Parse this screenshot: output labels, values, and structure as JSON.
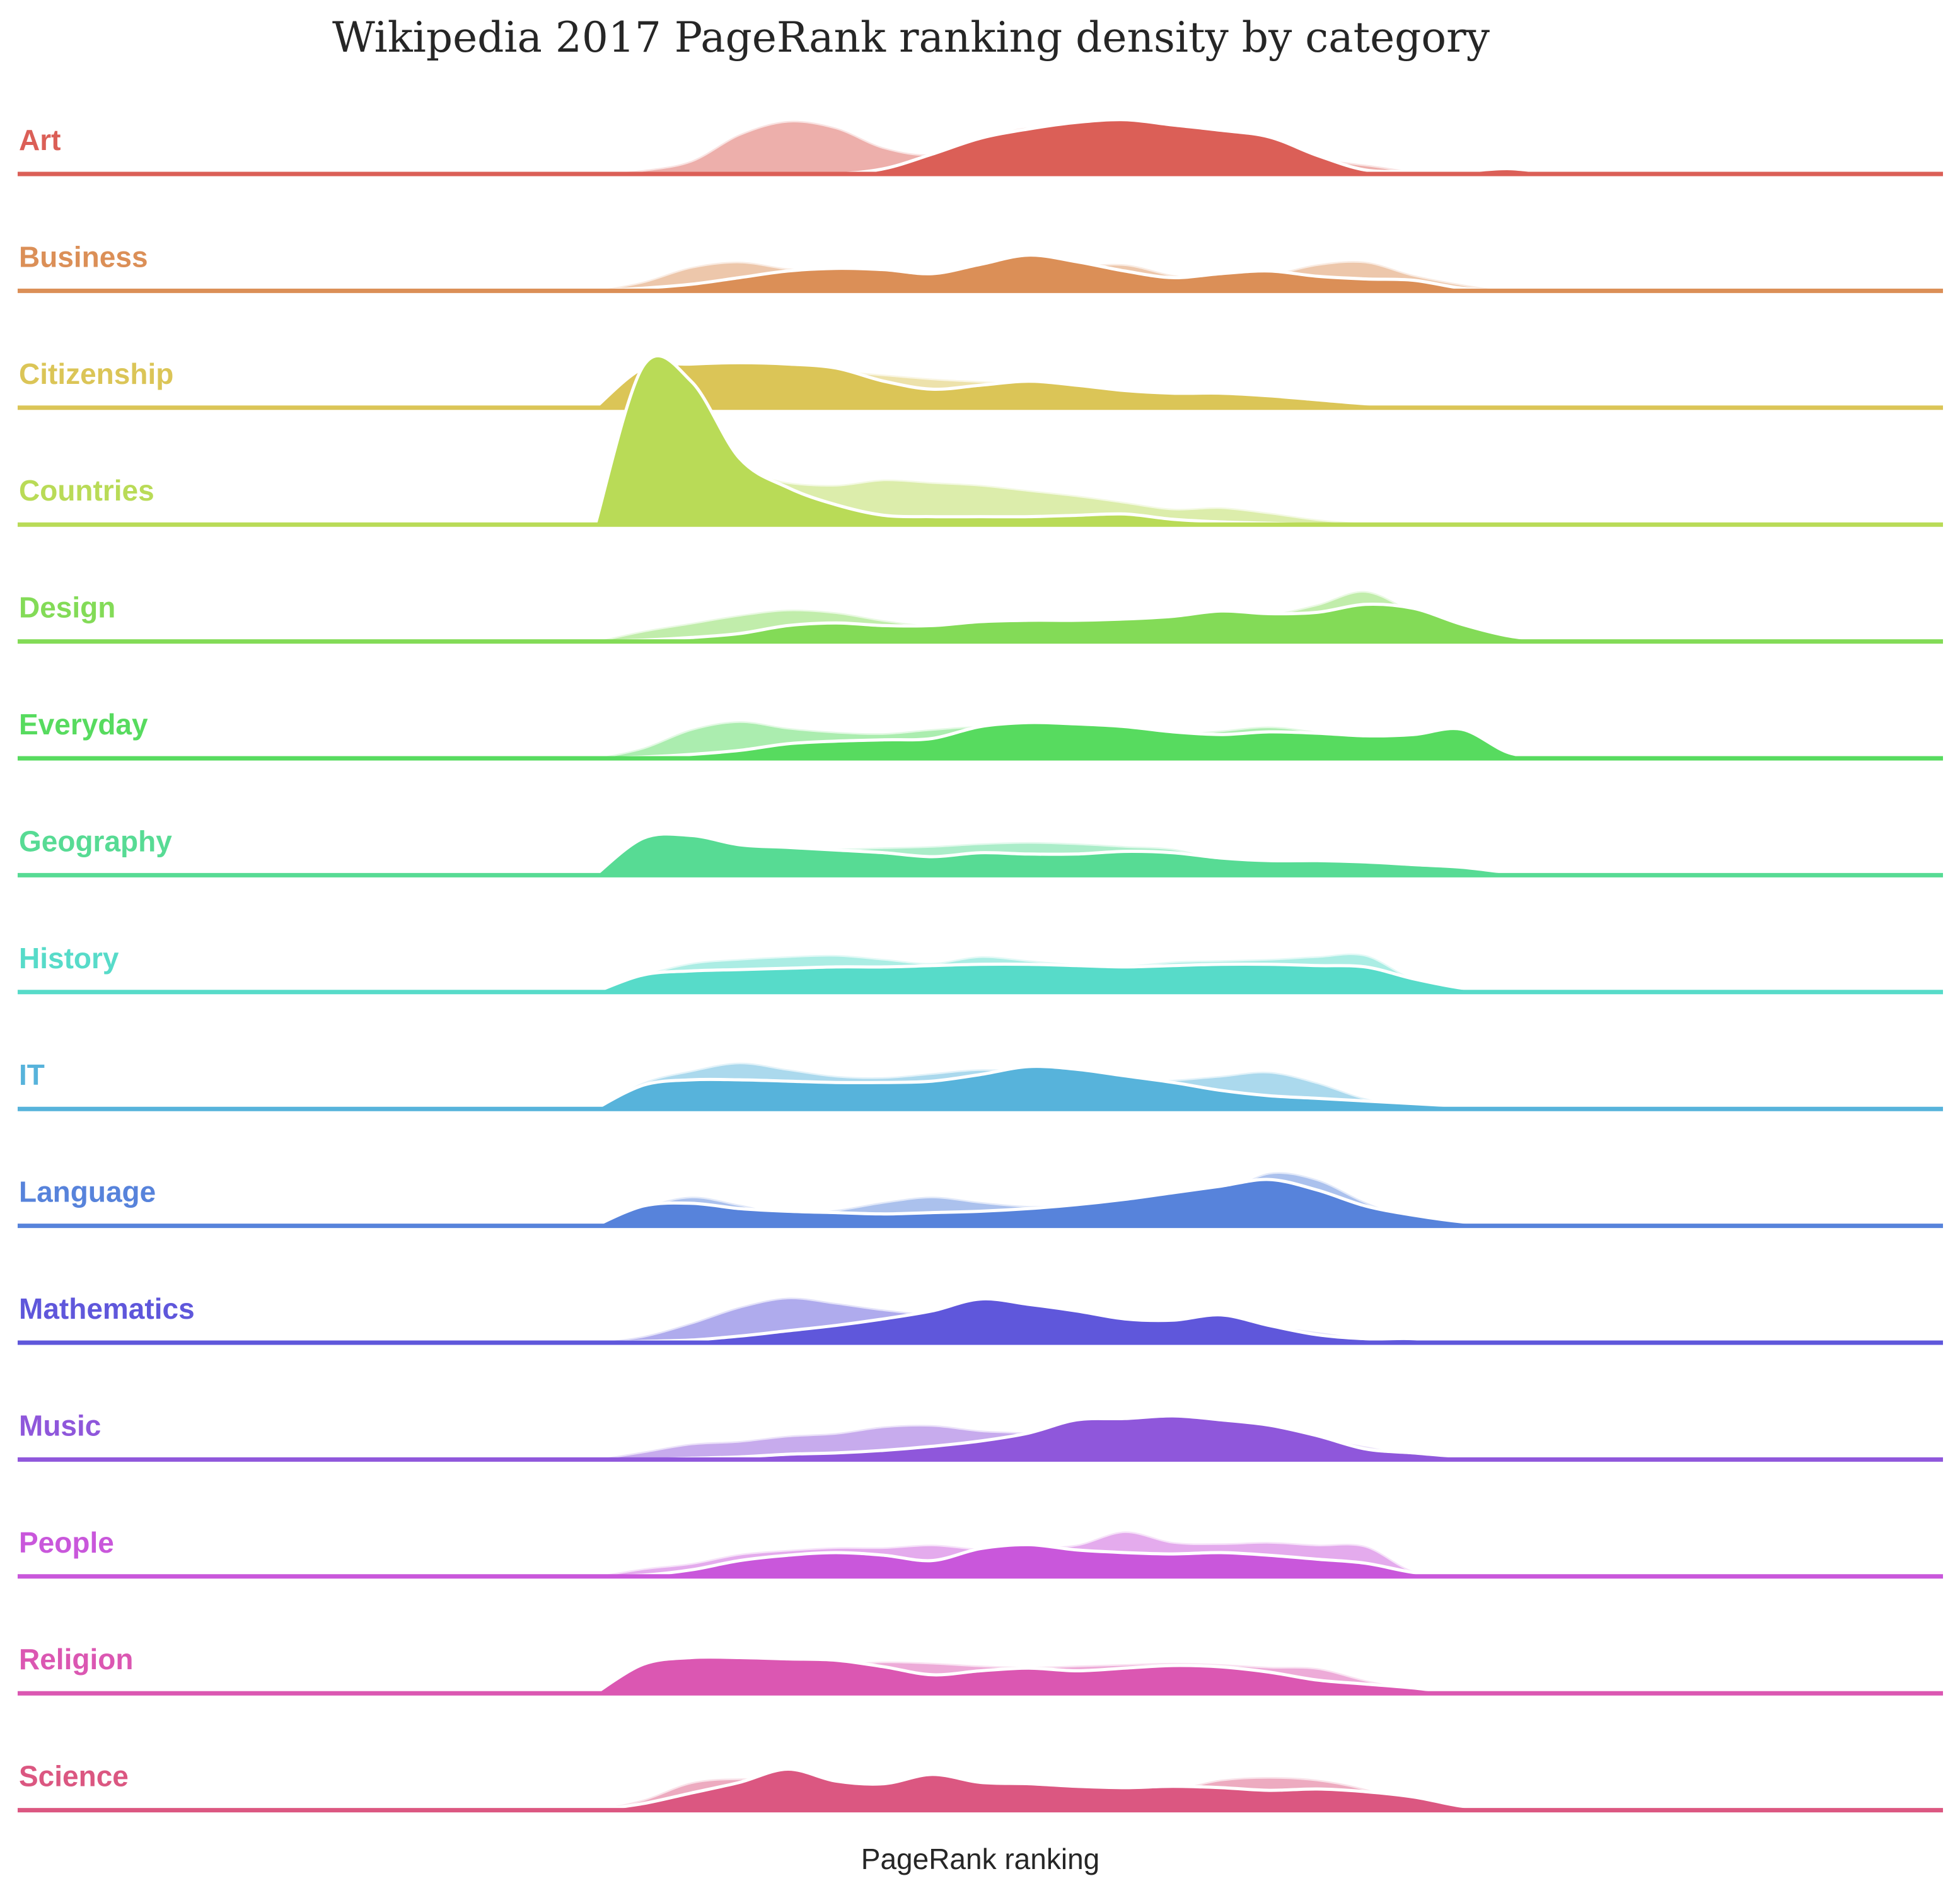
{
  "chart_data": {
    "type": "area",
    "title": "Wikipedia 2017 PageRank ranking density by category",
    "xlabel": "PageRank ranking",
    "ylabel": "",
    "grid": false,
    "legend": "none",
    "x": [
      0,
      5,
      10,
      15,
      20,
      25,
      30,
      35,
      40,
      45,
      50,
      55,
      60,
      65,
      70,
      75,
      80,
      85,
      90,
      95,
      100
    ],
    "xlim": [
      -60,
      140
    ],
    "ylim": [
      0,
      1
    ],
    "series": [
      {
        "name": "Art",
        "color": "#db5f57",
        "dark": [
          0,
          0,
          0,
          0,
          0,
          0,
          0.04,
          0.15,
          0.27,
          0.34,
          0.39,
          0.41,
          0.37,
          0.33,
          0.28,
          0.14,
          0.03,
          0.02,
          0.02,
          0.04,
          0
        ],
        "light": [
          0,
          0.03,
          0.1,
          0.3,
          0.4,
          0.35,
          0.2,
          0.15,
          0.25,
          0.35,
          0.25,
          0.15,
          0.06,
          0.02,
          0.03,
          0.1,
          0.07,
          0.02,
          0,
          0,
          0
        ]
      },
      {
        "name": "Business",
        "color": "#db8f57",
        "dark": [
          0,
          0.02,
          0.05,
          0.1,
          0.15,
          0.17,
          0.16,
          0.13,
          0.2,
          0.27,
          0.22,
          0.15,
          0.1,
          0.13,
          0.15,
          0.11,
          0.09,
          0.08,
          0.02,
          0,
          0
        ],
        "light": [
          0,
          0.07,
          0.18,
          0.22,
          0.17,
          0.15,
          0.14,
          0.12,
          0.08,
          0.1,
          0.18,
          0.2,
          0.12,
          0.08,
          0.12,
          0.2,
          0.22,
          0.12,
          0.05,
          0,
          0
        ]
      },
      {
        "name": "Citizenship",
        "color": "#dbc557",
        "dark": [
          0,
          0.3,
          0.33,
          0.34,
          0.33,
          0.3,
          0.2,
          0.14,
          0.17,
          0.2,
          0.17,
          0.13,
          0.11,
          0.11,
          0.09,
          0.06,
          0.03,
          0.01,
          0,
          0,
          0
        ],
        "light": [
          0,
          0.28,
          0.32,
          0.32,
          0.3,
          0.28,
          0.25,
          0.22,
          0.2,
          0.18,
          0.15,
          0.13,
          0.12,
          0.11,
          0.09,
          0.06,
          0.03,
          0.01,
          0,
          0,
          0
        ]
      },
      {
        "name": "Countries",
        "color": "#b9db57",
        "dark": [
          0,
          1.2,
          1.08,
          0.5,
          0.28,
          0.15,
          0.07,
          0.06,
          0.06,
          0.06,
          0.07,
          0.08,
          0.04,
          0.02,
          0.01,
          0,
          0,
          0,
          0,
          0,
          0
        ],
        "light": [
          0,
          0.35,
          0.38,
          0.4,
          0.32,
          0.3,
          0.34,
          0.32,
          0.3,
          0.26,
          0.22,
          0.17,
          0.12,
          0.13,
          0.09,
          0.04,
          0.01,
          0,
          0,
          0,
          0
        ]
      },
      {
        "name": "Design",
        "color": "#83db57",
        "dark": [
          0,
          0.01,
          0.03,
          0.06,
          0.12,
          0.14,
          0.12,
          0.12,
          0.15,
          0.16,
          0.16,
          0.17,
          0.19,
          0.23,
          0.21,
          0.22,
          0.28,
          0.25,
          0.13,
          0.04,
          0
        ],
        "light": [
          0,
          0.08,
          0.14,
          0.2,
          0.24,
          0.22,
          0.16,
          0.12,
          0.12,
          0.14,
          0.16,
          0.18,
          0.16,
          0.16,
          0.2,
          0.28,
          0.38,
          0.22,
          0.04,
          0,
          0
        ]
      },
      {
        "name": "Everyday",
        "color": "#57db5f",
        "dark": [
          0,
          0.01,
          0.03,
          0.06,
          0.11,
          0.13,
          0.14,
          0.15,
          0.24,
          0.27,
          0.26,
          0.24,
          0.2,
          0.18,
          0.2,
          0.19,
          0.17,
          0.18,
          0.22,
          0.04,
          0
        ],
        "light": [
          0,
          0.08,
          0.22,
          0.28,
          0.23,
          0.2,
          0.19,
          0.22,
          0.24,
          0.2,
          0.16,
          0.16,
          0.18,
          0.21,
          0.24,
          0.2,
          0.14,
          0.04,
          0.01,
          0,
          0
        ]
      },
      {
        "name": "Geography",
        "color": "#57db94",
        "dark": [
          0,
          0.28,
          0.3,
          0.23,
          0.21,
          0.19,
          0.17,
          0.14,
          0.17,
          0.16,
          0.16,
          0.18,
          0.17,
          0.13,
          0.11,
          0.11,
          0.1,
          0.08,
          0.06,
          0.02,
          0
        ],
        "light": [
          0,
          0.2,
          0.24,
          0.22,
          0.2,
          0.2,
          0.21,
          0.22,
          0.24,
          0.25,
          0.24,
          0.22,
          0.2,
          0.12,
          0.1,
          0.08,
          0.05,
          0.02,
          0,
          0,
          0
        ]
      },
      {
        "name": "History",
        "color": "#57dbc9",
        "dark": [
          0,
          0.13,
          0.16,
          0.17,
          0.18,
          0.19,
          0.19,
          0.2,
          0.21,
          0.21,
          0.2,
          0.19,
          0.2,
          0.21,
          0.21,
          0.2,
          0.19,
          0.1,
          0.03,
          0,
          0
        ],
        "light": [
          0,
          0.13,
          0.22,
          0.25,
          0.27,
          0.28,
          0.25,
          0.22,
          0.27,
          0.24,
          0.21,
          0.2,
          0.23,
          0.24,
          0.25,
          0.27,
          0.28,
          0.1,
          0.02,
          0,
          0
        ]
      },
      {
        "name": "IT",
        "color": "#57b3db",
        "dark": [
          0,
          0.18,
          0.22,
          0.22,
          0.21,
          0.2,
          0.2,
          0.21,
          0.26,
          0.32,
          0.3,
          0.25,
          0.2,
          0.14,
          0.1,
          0.08,
          0.06,
          0.04,
          0.02,
          0,
          0
        ],
        "light": [
          0,
          0.2,
          0.29,
          0.35,
          0.3,
          0.25,
          0.24,
          0.27,
          0.3,
          0.28,
          0.22,
          0.2,
          0.22,
          0.25,
          0.28,
          0.2,
          0.08,
          0.02,
          0,
          0,
          0
        ]
      },
      {
        "name": "Language",
        "color": "#5783db",
        "dark": [
          0,
          0.15,
          0.17,
          0.13,
          0.11,
          0.1,
          0.09,
          0.1,
          0.11,
          0.13,
          0.16,
          0.2,
          0.25,
          0.3,
          0.35,
          0.27,
          0.15,
          0.08,
          0.03,
          0,
          0
        ],
        "light": [
          0,
          0.14,
          0.22,
          0.16,
          0.09,
          0.12,
          0.18,
          0.22,
          0.18,
          0.15,
          0.16,
          0.16,
          0.18,
          0.24,
          0.4,
          0.35,
          0.18,
          0.05,
          0.01,
          0,
          0
        ]
      },
      {
        "name": "Mathematics",
        "color": "#5f57db",
        "dark": [
          0,
          0.01,
          0.02,
          0.05,
          0.09,
          0.13,
          0.18,
          0.24,
          0.33,
          0.29,
          0.24,
          0.18,
          0.17,
          0.21,
          0.13,
          0.06,
          0.03,
          0.03,
          0,
          0,
          0
        ],
        "light": [
          0,
          0.05,
          0.15,
          0.27,
          0.34,
          0.3,
          0.25,
          0.22,
          0.26,
          0.21,
          0.17,
          0.15,
          0.12,
          0.11,
          0.12,
          0.08,
          0.03,
          0.01,
          0,
          0,
          0
        ]
      },
      {
        "name": "Music",
        "color": "#8f57db",
        "dark": [
          0,
          0,
          0.01,
          0.02,
          0.04,
          0.05,
          0.07,
          0.1,
          0.14,
          0.2,
          0.3,
          0.31,
          0.33,
          0.3,
          0.26,
          0.18,
          0.08,
          0.05,
          0.02,
          0,
          0
        ],
        "light": [
          0,
          0.06,
          0.12,
          0.14,
          0.18,
          0.2,
          0.25,
          0.26,
          0.22,
          0.2,
          0.14,
          0.14,
          0.19,
          0.27,
          0.2,
          0.16,
          0.1,
          0.03,
          0.01,
          0,
          0
        ]
      },
      {
        "name": "People",
        "color": "#c957db",
        "dark": [
          0,
          0.01,
          0.05,
          0.12,
          0.16,
          0.18,
          0.16,
          0.12,
          0.21,
          0.24,
          0.2,
          0.18,
          0.17,
          0.18,
          0.16,
          0.13,
          0.1,
          0.03,
          0,
          0,
          0
        ],
        "light": [
          0,
          0.06,
          0.1,
          0.17,
          0.2,
          0.22,
          0.22,
          0.24,
          0.21,
          0.22,
          0.24,
          0.34,
          0.26,
          0.25,
          0.26,
          0.24,
          0.23,
          0.04,
          0,
          0,
          0
        ]
      },
      {
        "name": "Religion",
        "color": "#db57b2",
        "dark": [
          0,
          0.22,
          0.27,
          0.27,
          0.26,
          0.25,
          0.2,
          0.14,
          0.17,
          0.19,
          0.17,
          0.19,
          0.21,
          0.2,
          0.16,
          0.1,
          0.07,
          0.04,
          0,
          0,
          0
        ],
        "light": [
          0,
          0.16,
          0.24,
          0.22,
          0.2,
          0.22,
          0.24,
          0.23,
          0.21,
          0.2,
          0.21,
          0.22,
          0.23,
          0.22,
          0.2,
          0.19,
          0.1,
          0.03,
          0,
          0,
          0
        ]
      },
      {
        "name": "Science",
        "color": "#db5781",
        "dark": [
          0,
          0.05,
          0.13,
          0.21,
          0.31,
          0.22,
          0.2,
          0.27,
          0.21,
          0.2,
          0.18,
          0.17,
          0.18,
          0.17,
          0.15,
          0.16,
          0.14,
          0.1,
          0.03,
          0,
          0
        ],
        "light": [
          0,
          0.08,
          0.21,
          0.24,
          0.22,
          0.2,
          0.19,
          0.22,
          0.16,
          0.15,
          0.16,
          0.17,
          0.16,
          0.23,
          0.25,
          0.23,
          0.16,
          0.04,
          0,
          0,
          0
        ]
      }
    ]
  }
}
